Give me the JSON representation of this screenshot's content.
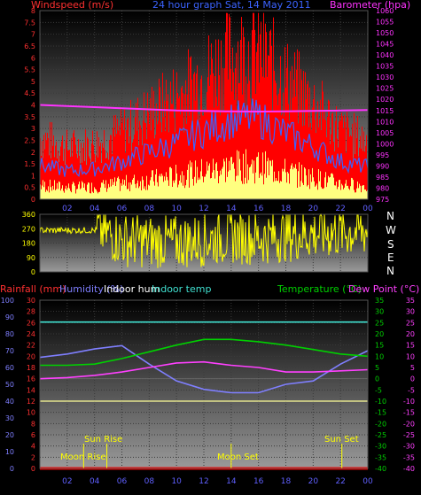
{
  "header": {
    "windspeed_label": "Windspeed (m/s)",
    "title": "24 hour graph Sat, 14 May 2011",
    "barometer_label": "Barometer (hpa)"
  },
  "compass_letters": [
    "N",
    "W",
    "S",
    "E",
    "N"
  ],
  "bottom_header": {
    "rain": "Rainfall (mm)",
    "humidity": "Humidity (%)",
    "indoor_hum": "Indoor hum",
    "indoor_temp": "Indoor temp",
    "temperature": "Temperature (°C)",
    "dewpoint": "Dew Point (°C)"
  },
  "annotations": {
    "sunrise": "Sun Rise",
    "sunset": "Sun Set",
    "moonrise": "Moon Rise",
    "moonset": "Moon Set"
  },
  "colors": {
    "wind_gust": "#ff0000",
    "wind_avg": "#3b63ff",
    "wind_low": "#ffff80",
    "barometer": "#ff33ff",
    "direction": "#ffff00",
    "humidity": "#7f7fff",
    "indoor_hum": "#40e0d0",
    "temperature": "#00d000",
    "dewpoint": "#ff40ff",
    "rain": "#ff0000",
    "sun": "#ffff00"
  },
  "chart_data": [
    {
      "type": "area",
      "title": "24 hour graph Sat, 14 May 2011",
      "ylabel": "Windspeed (m/s)",
      "ylabel2": "Barometer (hpa)",
      "x_ticks": [
        "02",
        "04",
        "06",
        "08",
        "10",
        "12",
        "14",
        "16",
        "18",
        "20",
        "22",
        "00"
      ],
      "y_ticks": [
        "0",
        "0.5",
        "1",
        "1.5",
        "2",
        "2.5",
        "3",
        "3.5",
        "4",
        "4.5",
        "5",
        "5.5",
        "6",
        "6.5",
        "7",
        "7.5",
        "8"
      ],
      "y2_ticks": [
        "975",
        "980",
        "985",
        "990",
        "995",
        "1000",
        "1005",
        "1010",
        "1015",
        "1020",
        "1025",
        "1030",
        "1035",
        "1040",
        "1045",
        "1050",
        "1055",
        "1060"
      ],
      "ylim": [
        0,
        8
      ],
      "y2lim": [
        975,
        1060
      ],
      "x_hours": [
        0,
        2,
        4,
        6,
        8,
        10,
        12,
        14,
        16,
        18,
        20,
        22,
        24
      ],
      "series": [
        {
          "name": "Windspeed (m/s)",
          "values": [
            1.8,
            1.5,
            1.6,
            2.0,
            2.5,
            3.0,
            3.6,
            4.2,
            4.3,
            3.5,
            2.8,
            2.0,
            1.7
          ]
        },
        {
          "name": "Barometer (hpa)",
          "values": [
            1017.5,
            1017,
            1016.5,
            1016,
            1015.5,
            1015,
            1014.8,
            1014.6,
            1014.5,
            1014.6,
            1014.8,
            1015,
            1015.2
          ]
        }
      ]
    },
    {
      "type": "scatter",
      "ylabel": "Wind direction",
      "y_ticks": [
        "0",
        "90",
        "180",
        "270",
        "360"
      ],
      "x_ticks": [
        "02",
        "04",
        "06",
        "08",
        "10",
        "12",
        "14",
        "16",
        "18",
        "20",
        "22",
        "00"
      ],
      "ylim": [
        0,
        360
      ],
      "x_hours": [
        0,
        2,
        4,
        6,
        8,
        10,
        12,
        14,
        16,
        18,
        20,
        22,
        24
      ],
      "series": [
        {
          "name": "Direction",
          "values": [
            280,
            270,
            275,
            200,
            190,
            185,
            200,
            220,
            210,
            230,
            240,
            250,
            260
          ]
        }
      ]
    },
    {
      "type": "line",
      "x_ticks": [
        "02",
        "04",
        "06",
        "08",
        "10",
        "12",
        "14",
        "16",
        "18",
        "20",
        "22",
        "00"
      ],
      "rain_ticks": [
        "0",
        "2",
        "4",
        "6",
        "8",
        "10",
        "12",
        "14",
        "16",
        "18",
        "20",
        "22",
        "24",
        "26",
        "28",
        "30"
      ],
      "hum_ticks": [
        "0",
        "10",
        "20",
        "30",
        "40",
        "50",
        "60",
        "70",
        "80",
        "90",
        "100"
      ],
      "temp_ticks": [
        "35",
        "30",
        "25",
        "20",
        "15",
        "10",
        "5",
        "0",
        "-5",
        "-10",
        "-15",
        "-20",
        "-25",
        "-30",
        "-35",
        "-40"
      ],
      "x_hours": [
        0,
        2,
        4,
        6,
        8,
        10,
        12,
        14,
        16,
        18,
        20,
        22,
        24
      ],
      "series": [
        {
          "name": "Humidity (%)",
          "values": [
            66,
            68,
            71,
            73,
            62,
            52,
            47,
            45,
            45,
            50,
            52,
            62,
            70
          ]
        },
        {
          "name": "Indoor hum",
          "values": [
            87,
            87,
            87,
            87,
            87,
            87,
            87,
            87,
            87,
            87,
            87,
            87,
            87
          ]
        },
        {
          "name": "Temperature (°C)",
          "values": [
            6,
            6,
            6.5,
            9,
            12,
            15,
            17.5,
            17.5,
            16.5,
            15,
            13,
            11,
            10
          ]
        },
        {
          "name": "Dew Point (°C)",
          "values": [
            0,
            0.5,
            1.5,
            3,
            5,
            7,
            7.5,
            6,
            5,
            3,
            3,
            3.5,
            4
          ]
        },
        {
          "name": "Rainfall (mm)",
          "values": [
            0,
            0,
            0,
            0,
            0,
            0,
            0,
            0,
            0,
            0,
            0,
            0,
            0
          ]
        }
      ]
    }
  ]
}
